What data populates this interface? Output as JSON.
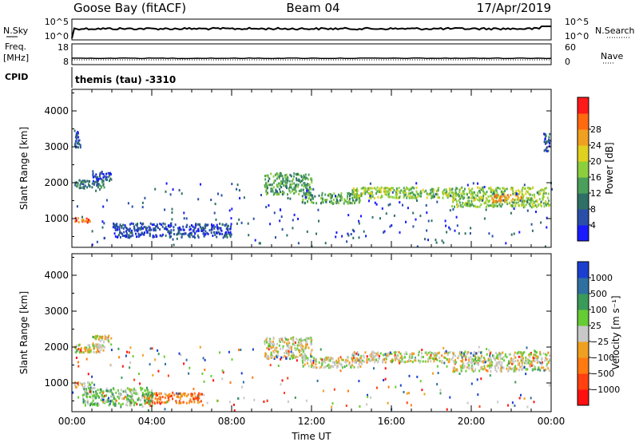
{
  "header": {
    "station": "Goose Bay (fitACF)",
    "beam": "Beam 04",
    "date": "17/Apr/2019"
  },
  "top_panels": {
    "nsky_label": "N.Sky",
    "nsky_ticks": [
      "10^5",
      "10^0"
    ],
    "nsearch_label": "N.Search",
    "nsearch_ticks": [
      "10^5",
      "10^0"
    ],
    "freq_label": "Freq.",
    "freq_unit": "[MHz]",
    "freq_ticks": [
      "18",
      "8"
    ],
    "nave_label": "Nave",
    "nave_ticks": [
      "60",
      "0"
    ],
    "cpid_label": "CPID",
    "cpid_text": "themis (tau) -3310"
  },
  "chart_data": [
    {
      "type": "heatmap",
      "name": "power",
      "ylabel": "Slant Range [km]",
      "ylim": [
        200,
        4600
      ],
      "yticks": [
        "1000",
        "2000",
        "3000",
        "4000"
      ],
      "xlim": [
        0,
        24
      ],
      "colorbar": {
        "label": "Power [dB]",
        "ticks": [
          "4",
          "8",
          "12",
          "16",
          "20",
          "24",
          "28"
        ],
        "colors": [
          "#1a1aff",
          "#2a4fa8",
          "#2e6f66",
          "#4aa05a",
          "#8ccf3c",
          "#e0d020",
          "#f0a020",
          "#ff6a10",
          "#ff1a1a"
        ]
      },
      "regions": [
        {
          "t0": 0.1,
          "t1": 1.0,
          "r0": 900,
          "r1": 1050,
          "level": 7
        },
        {
          "t0": 0.1,
          "t1": 1.6,
          "r0": 1880,
          "r1": 2100,
          "level": 2
        },
        {
          "t0": 1.0,
          "t1": 2.0,
          "r0": 2050,
          "r1": 2350,
          "level": 1
        },
        {
          "t0": 0.1,
          "t1": 0.4,
          "r0": 3000,
          "r1": 3500,
          "level": 1
        },
        {
          "t0": 9.6,
          "t1": 12.0,
          "r0": 1700,
          "r1": 2300,
          "level": 3
        },
        {
          "t0": 11.5,
          "t1": 14.5,
          "r0": 1450,
          "r1": 1750,
          "level": 3
        },
        {
          "t0": 14.0,
          "t1": 19.0,
          "r0": 1600,
          "r1": 1900,
          "level": 4
        },
        {
          "t0": 19.0,
          "t1": 23.9,
          "r0": 1350,
          "r1": 1900,
          "level": 4
        },
        {
          "t0": 21.0,
          "t1": 22.5,
          "r0": 1500,
          "r1": 1700,
          "level": 6
        },
        {
          "t0": 2.0,
          "t1": 8.0,
          "r0": 500,
          "r1": 900,
          "level": 1
        },
        {
          "t0": 23.6,
          "t1": 23.9,
          "r0": 2900,
          "r1": 3400,
          "level": 1
        }
      ]
    },
    {
      "type": "heatmap",
      "name": "velocity",
      "ylabel": "Slant Range [km]",
      "ylim": [
        200,
        4600
      ],
      "yticks": [
        "1000",
        "2000",
        "3000",
        "4000"
      ],
      "xlim": [
        0,
        24
      ],
      "xticks": [
        "00:00",
        "04:00",
        "08:00",
        "12:00",
        "16:00",
        "20:00",
        "00:00"
      ],
      "xlabel": "Time UT",
      "colorbar": {
        "label": "Velocity [m s⁻¹]",
        "ticks": [
          "1000",
          "500",
          "100",
          "25",
          "−25",
          "−100",
          "−500",
          "−1000"
        ],
        "colors": [
          "#1a3fd0",
          "#2e70a0",
          "#3a9a5a",
          "#66cc33",
          "#c8c8c8",
          "#f0a020",
          "#ff7a10",
          "#ff4010",
          "#ff1010"
        ]
      },
      "regions": [
        {
          "t0": 0.1,
          "t1": 1.0,
          "r0": 900,
          "r1": 1050,
          "level": 4
        },
        {
          "t0": 0.1,
          "t1": 1.6,
          "r0": 1880,
          "r1": 2100,
          "level": 4
        },
        {
          "t0": 1.0,
          "t1": 2.0,
          "r0": 2050,
          "r1": 2350,
          "level": 4
        },
        {
          "t0": 9.6,
          "t1": 12.0,
          "r0": 1700,
          "r1": 2300,
          "level": 4
        },
        {
          "t0": 11.5,
          "t1": 14.5,
          "r0": 1450,
          "r1": 1750,
          "level": 4
        },
        {
          "t0": 14.0,
          "t1": 19.0,
          "r0": 1600,
          "r1": 1900,
          "level": 4
        },
        {
          "t0": 19.0,
          "t1": 23.9,
          "r0": 1350,
          "r1": 1900,
          "level": 4
        },
        {
          "t0": 3.5,
          "t1": 6.5,
          "r0": 450,
          "r1": 750,
          "level": 6
        },
        {
          "t0": 0.5,
          "t1": 4.0,
          "r0": 400,
          "r1": 900,
          "level": 3
        }
      ]
    }
  ]
}
